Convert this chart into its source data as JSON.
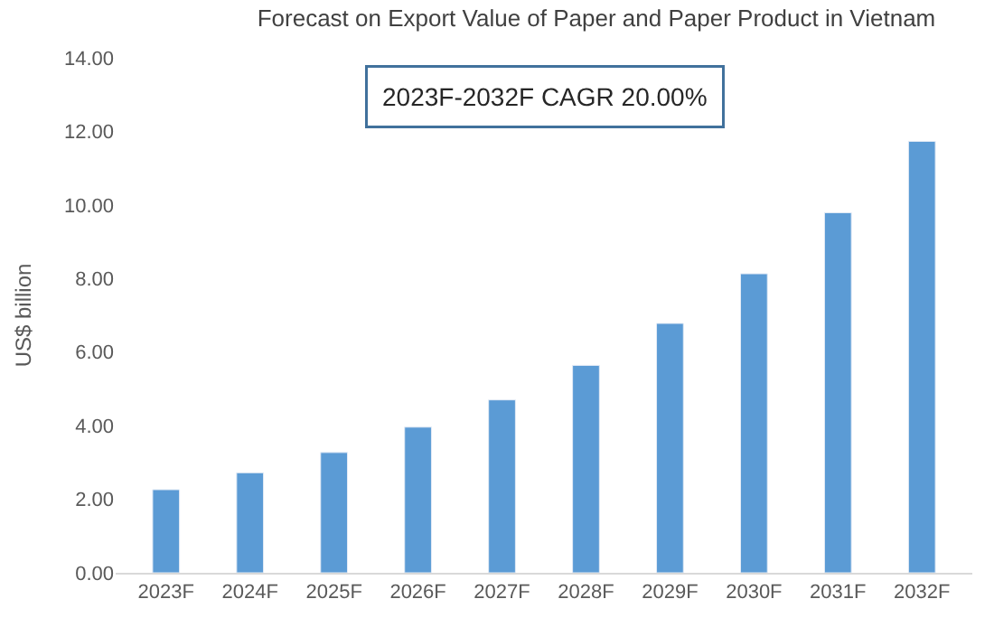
{
  "chart_data": {
    "type": "bar",
    "title": "Forecast on Export Value of Paper and Paper Product in Vietnam",
    "ylabel": "US$ billion",
    "categories": [
      "2023F",
      "2024F",
      "2025F",
      "2026F",
      "2027F",
      "2028F",
      "2029F",
      "2030F",
      "2031F",
      "2032F"
    ],
    "values": [
      2.26,
      2.72,
      3.27,
      3.96,
      4.7,
      5.64,
      6.78,
      8.13,
      9.79,
      11.73
    ],
    "color": "#5b9bd5",
    "ylim": [
      0,
      14
    ],
    "yticks": [
      {
        "value": 0,
        "label": "0.00"
      },
      {
        "value": 2,
        "label": "2.00"
      },
      {
        "value": 4,
        "label": "4.00"
      },
      {
        "value": 6,
        "label": "6.00"
      },
      {
        "value": 8,
        "label": "8.00"
      },
      {
        "value": 10,
        "label": "10.00"
      },
      {
        "value": 12,
        "label": "12.00"
      },
      {
        "value": 14,
        "label": "14.00"
      }
    ],
    "annotations": [
      "2023F-2032F CAGR 20.00%"
    ]
  }
}
